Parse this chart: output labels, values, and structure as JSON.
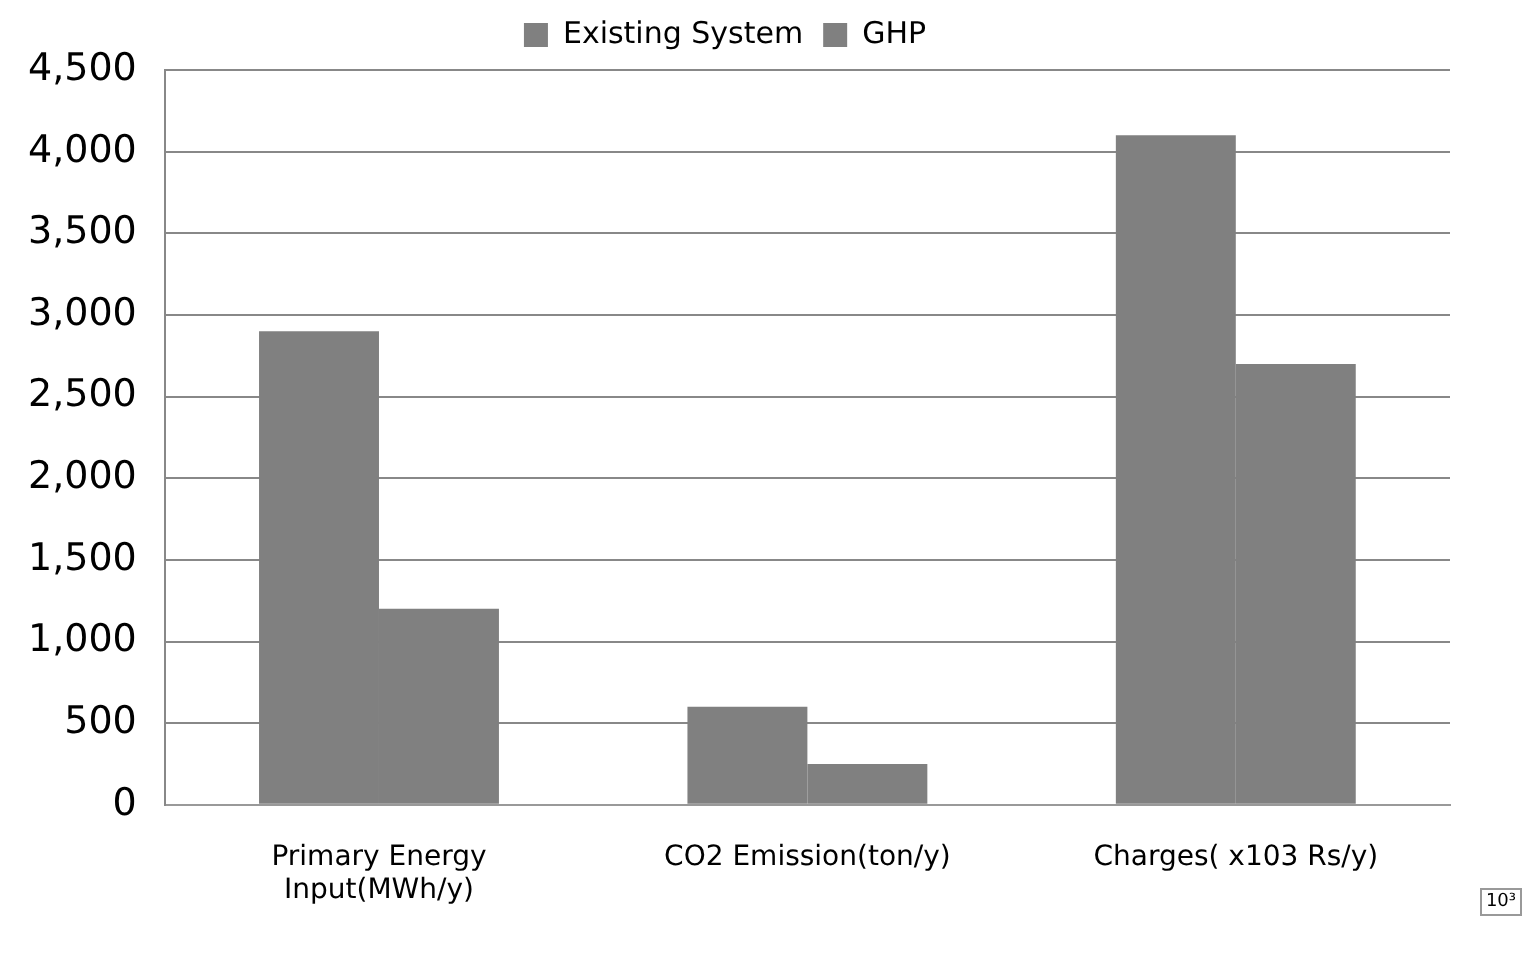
{
  "chart_data": {
    "type": "bar",
    "categories": [
      "Primary Energy\nInput(MWh/y)",
      "CO2 Emission(ton/y)",
      "Charges( x103 Rs/y)"
    ],
    "series": [
      {
        "name": "Existing System",
        "color": "#808080",
        "values": [
          2900,
          600,
          4100
        ]
      },
      {
        "name": "GHP",
        "color": "#808080",
        "values": [
          1200,
          250,
          2700
        ]
      }
    ],
    "ylim": [
      0,
      4500
    ],
    "yticks": [
      {
        "value": 0,
        "label": "0"
      },
      {
        "value": 500,
        "label": "500"
      },
      {
        "value": 1000,
        "label": "1,000"
      },
      {
        "value": 1500,
        "label": "1,500"
      },
      {
        "value": 2000,
        "label": "2,000"
      },
      {
        "value": 2500,
        "label": "2,500"
      },
      {
        "value": 3000,
        "label": "3,000"
      },
      {
        "value": 3500,
        "label": "3,500"
      },
      {
        "value": 4000,
        "label": "4,000"
      },
      {
        "value": 4500,
        "label": "4,500"
      }
    ],
    "grid": "y",
    "legend": "top",
    "annotations": [
      "10³"
    ]
  }
}
